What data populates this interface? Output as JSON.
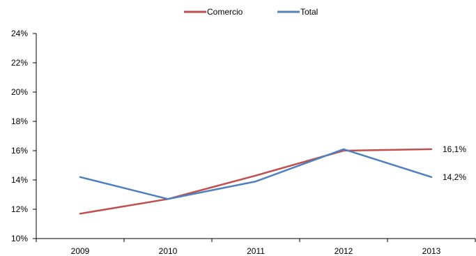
{
  "chart_data": {
    "type": "line",
    "title": "",
    "xlabel": "",
    "ylabel": "",
    "categories": [
      "2009",
      "2010",
      "2011",
      "2012",
      "2013"
    ],
    "y_ticks": [
      "10%",
      "12%",
      "14%",
      "16%",
      "18%",
      "20%",
      "22%",
      "24%"
    ],
    "ylim": [
      10,
      24
    ],
    "grid": false,
    "legend_position": "top-center",
    "series": [
      {
        "name": "Comercio",
        "color": "#C0504D",
        "values": [
          11.7,
          12.7,
          14.3,
          16.0,
          16.1
        ]
      },
      {
        "name": "Total",
        "color": "#4F81BD",
        "values": [
          14.2,
          12.7,
          13.9,
          16.1,
          14.2
        ]
      }
    ],
    "data_labels": [
      {
        "series": 0,
        "index": 4,
        "text": "16,1%"
      },
      {
        "series": 1,
        "index": 4,
        "text": "14,2%"
      }
    ]
  }
}
